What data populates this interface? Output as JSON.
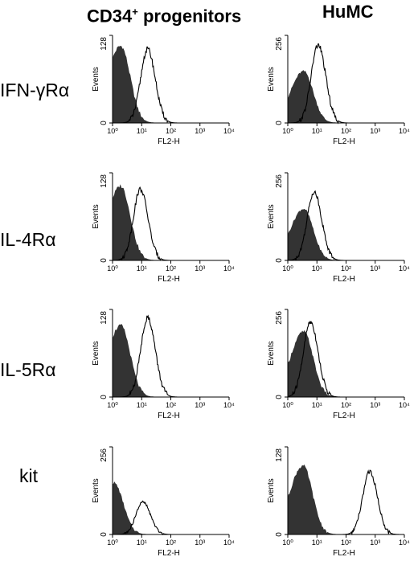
{
  "columns": [
    {
      "label": "CD34",
      "sup": "+",
      "rest": " progenitors"
    },
    {
      "label": "HuMC",
      "sup": "",
      "rest": ""
    }
  ],
  "rows": [
    "IFN-γRα",
    "IL-4Rα",
    "IL-5Rα",
    "kit"
  ],
  "colors": {
    "filled": "#333333",
    "outline": "#000000",
    "background": "#ffffff"
  },
  "chart_data": [
    {
      "type": "area",
      "row": "IFN-γRα",
      "column": "CD34+ progenitors",
      "ylabel": "Events",
      "xlabel": "FL2-H",
      "ylim": [
        0,
        128
      ],
      "y_ticks": [
        "0",
        "128"
      ],
      "xscale": "log",
      "xlim": [
        1,
        10000
      ],
      "x_ticks": [
        "10⁰",
        "10¹",
        "10²",
        "10³",
        "10⁴"
      ],
      "filled_histogram": {
        "peak_x": 1.9,
        "peak_y": 112
      },
      "open_histogram": {
        "peak_x": 16,
        "peak_y": 108
      }
    },
    {
      "type": "area",
      "row": "IFN-γRα",
      "column": "HuMC",
      "ylabel": "Events",
      "xlabel": "FL2-H",
      "ylim": [
        0,
        256
      ],
      "y_ticks": [
        "0",
        "256"
      ],
      "xscale": "log",
      "xlim": [
        1,
        10000
      ],
      "x_ticks": [
        "10⁰",
        "10¹",
        "10²",
        "10³",
        "10⁴"
      ],
      "filled_histogram": {
        "peak_x": 3.5,
        "peak_y": 150
      },
      "open_histogram": {
        "peak_x": 11,
        "peak_y": 228
      }
    },
    {
      "type": "area",
      "row": "IL-4Rα",
      "column": "CD34+ progenitors",
      "ylabel": "Events",
      "xlabel": "FL2-H",
      "ylim": [
        0,
        128
      ],
      "y_ticks": [
        "0",
        "128"
      ],
      "xscale": "log",
      "xlim": [
        1,
        10000
      ],
      "x_ticks": [
        "10⁰",
        "10¹",
        "10²",
        "10³",
        "10⁴"
      ],
      "filled_histogram": {
        "peak_x": 1.9,
        "peak_y": 108
      },
      "open_histogram": {
        "peak_x": 9,
        "peak_y": 104
      }
    },
    {
      "type": "area",
      "row": "IL-4Rα",
      "column": "HuMC",
      "ylabel": "Events",
      "xlabel": "FL2-H",
      "ylim": [
        0,
        256
      ],
      "y_ticks": [
        "0",
        "256"
      ],
      "xscale": "log",
      "xlim": [
        1,
        10000
      ],
      "x_ticks": [
        "10⁰",
        "10¹",
        "10²",
        "10³",
        "10⁴"
      ],
      "filled_histogram": {
        "peak_x": 3.5,
        "peak_y": 150
      },
      "open_histogram": {
        "peak_x": 8,
        "peak_y": 200
      }
    },
    {
      "type": "area",
      "row": "IL-5Rα",
      "column": "CD34+ progenitors",
      "ylabel": "Events",
      "xlabel": "FL2-H",
      "ylim": [
        0,
        128
      ],
      "y_ticks": [
        "0",
        "128"
      ],
      "xscale": "log",
      "xlim": [
        1,
        10000
      ],
      "x_ticks": [
        "10⁰",
        "10¹",
        "10²",
        "10³",
        "10⁴"
      ],
      "filled_histogram": {
        "peak_x": 1.9,
        "peak_y": 104
      },
      "open_histogram": {
        "peak_x": 16,
        "peak_y": 116
      }
    },
    {
      "type": "area",
      "row": "IL-5Rα",
      "column": "HuMC",
      "ylabel": "Events",
      "xlabel": "FL2-H",
      "ylim": [
        0,
        256
      ],
      "y_ticks": [
        "0",
        "256"
      ],
      "xscale": "log",
      "xlim": [
        1,
        10000
      ],
      "x_ticks": [
        "10⁰",
        "10¹",
        "10²",
        "10³",
        "10⁴"
      ],
      "filled_histogram": {
        "peak_x": 3.5,
        "peak_y": 190
      },
      "open_histogram": {
        "peak_x": 6,
        "peak_y": 220
      }
    },
    {
      "type": "area",
      "row": "kit",
      "column": "CD34+ progenitors",
      "ylabel": "Events",
      "xlabel": "FL2-H",
      "ylim": [
        0,
        256
      ],
      "y_ticks": [
        "0",
        "256"
      ],
      "xscale": "log",
      "xlim": [
        1,
        10000
      ],
      "x_ticks": [
        "10⁰",
        "10¹",
        "10²",
        "10³",
        "10⁴"
      ],
      "filled_histogram": {
        "peak_x": 1.1,
        "peak_y": 150
      },
      "open_histogram": {
        "peak_x": 11,
        "peak_y": 95
      }
    },
    {
      "type": "area",
      "row": "kit",
      "column": "HuMC",
      "ylabel": "Events",
      "xlabel": "FL2-H",
      "ylim": [
        0,
        128
      ],
      "y_ticks": [
        "0",
        "128"
      ],
      "xscale": "log",
      "xlim": [
        1,
        10000
      ],
      "x_ticks": [
        "10⁰",
        "10¹",
        "10²",
        "10³",
        "10⁴"
      ],
      "filled_histogram": {
        "peak_x": 3.3,
        "peak_y": 100
      },
      "open_histogram": {
        "peak_x": 650,
        "peak_y": 92
      }
    }
  ]
}
